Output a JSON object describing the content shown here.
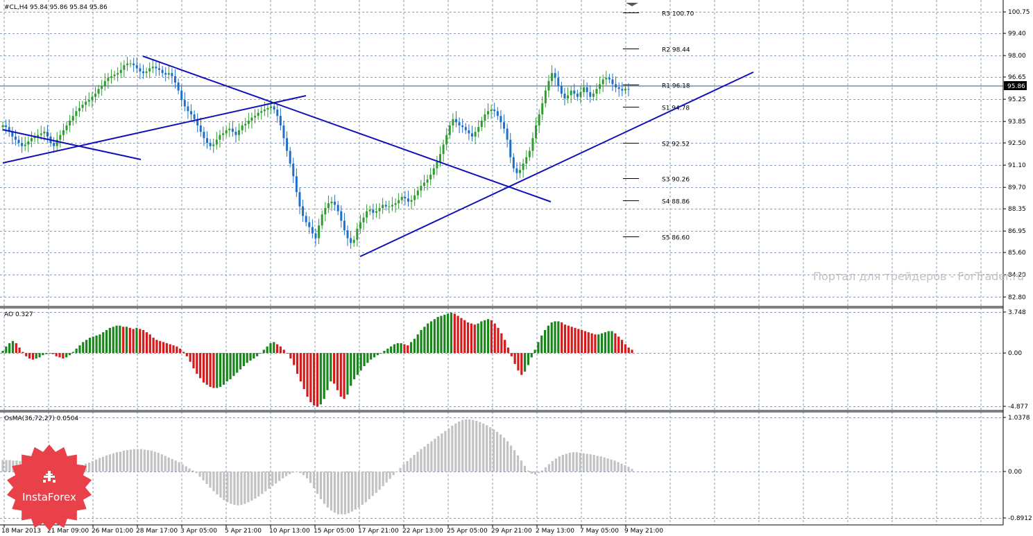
{
  "colors": {
    "background": "#ffffff",
    "grid": "#8c9bb0",
    "bull_candle": "#2e9c2e",
    "bear_candle": "#1f6fc8",
    "trendline": "#1010b8",
    "ao_up": "#18861a",
    "ao_down": "#d41a1a",
    "osma": "#c2c2c2",
    "bid_line": "#34527a",
    "logo": "#e8414a"
  },
  "main_window": {
    "title": "#CL,H4  95.84 95.86 95.84 95.86",
    "price_axis": [
      "100.75",
      "99.40",
      "98.00",
      "96.65",
      "95.25",
      "93.85",
      "92.50",
      "91.10",
      "89.70",
      "88.35",
      "86.95",
      "85.60",
      "84.20",
      "82.80"
    ],
    "current_price": "95.86",
    "pivots": [
      {
        "label": "R3 100.70",
        "value": 100.7
      },
      {
        "label": "R2 98.44",
        "value": 98.44
      },
      {
        "label": "R1 96.18",
        "value": 96.18
      },
      {
        "label": "S1 94.78",
        "value": 94.78
      },
      {
        "label": "S2 92.52",
        "value": 92.52
      },
      {
        "label": "S3 90.26",
        "value": 90.26
      },
      {
        "label": "S4 88.86",
        "value": 88.86
      },
      {
        "label": "S5 86.60",
        "value": 86.6
      }
    ]
  },
  "ao_window": {
    "title": "AO 0.327",
    "axis": [
      "3.748",
      "0.00",
      "-4.877"
    ]
  },
  "osma_window": {
    "title": "OsMA(36,72,27) 0.0504",
    "axis": [
      "1.0378",
      "0.00",
      "-0.8912"
    ]
  },
  "time_axis": [
    "18 Mar 2013",
    "21 Mar 09:00",
    "26 Mar 01:00",
    "28 Mar 17:00",
    "3 Apr 05:00",
    "5 Apr 21:00",
    "10 Apr 13:00",
    "15 Apr 05:00",
    "17 Apr 21:00",
    "22 Apr 13:00",
    "25 Apr 05:00",
    "29 Apr 21:00",
    "2 May 13:00",
    "7 May 05:00",
    "9 May 21:00"
  ],
  "watermark": "Портал для трейдеров - ForTrader.ru",
  "logo": {
    "text": "InstaForex",
    "icon": "instaforex-logo-icon"
  },
  "chart_data": [
    {
      "type": "candlestick",
      "name": "#CL,H4",
      "ylim": [
        82.2,
        101.5
      ],
      "closes": [
        93.6,
        93.5,
        93.2,
        92.9,
        92.7,
        92.5,
        92.3,
        92.4,
        92.6,
        92.8,
        92.9,
        93.0,
        93.1,
        93.2,
        92.9,
        92.5,
        92.3,
        92.7,
        93.0,
        93.3,
        93.6,
        93.9,
        94.2,
        94.5,
        94.7,
        94.9,
        95.1,
        95.2,
        95.4,
        95.6,
        95.9,
        96.1,
        96.4,
        96.6,
        96.7,
        96.8,
        96.9,
        97.1,
        97.4,
        97.5,
        97.5,
        97.4,
        97.2,
        97.0,
        96.9,
        97.0,
        97.2,
        97.3,
        97.2,
        97.1,
        96.9,
        96.8,
        96.9,
        96.7,
        96.3,
        95.8,
        95.2,
        94.8,
        94.5,
        94.3,
        94.0,
        93.6,
        93.2,
        92.8,
        92.5,
        92.3,
        92.4,
        92.7,
        93.0,
        93.1,
        93.3,
        93.4,
        93.2,
        93.0,
        93.3,
        93.6,
        93.7,
        93.9,
        94.1,
        94.2,
        94.4,
        94.5,
        94.6,
        94.7,
        94.8,
        94.6,
        94.2,
        93.6,
        92.8,
        92.0,
        91.2,
        90.4,
        89.4,
        88.5,
        87.9,
        87.5,
        87.2,
        86.8,
        86.5,
        87.3,
        88.0,
        88.4,
        88.7,
        88.8,
        88.6,
        88.2,
        87.6,
        87.0,
        86.5,
        86.2,
        86.4,
        87.1,
        87.5,
        87.8,
        88.2,
        88.3,
        88.1,
        88.2,
        88.4,
        88.6,
        88.5,
        88.5,
        88.6,
        88.7,
        88.9,
        89.1,
        89.0,
        88.8,
        88.9,
        89.2,
        89.5,
        89.8,
        90.0,
        90.2,
        90.5,
        90.9,
        91.3,
        91.8,
        92.4,
        93.0,
        93.6,
        94.0,
        93.8,
        93.6,
        93.5,
        93.3,
        93.1,
        92.9,
        93.2,
        93.5,
        93.9,
        94.3,
        94.5,
        94.6,
        94.5,
        94.2,
        93.8,
        93.4,
        92.7,
        91.6,
        90.9,
        90.6,
        90.8,
        91.2,
        91.6,
        92.0,
        92.8,
        93.6,
        94.3,
        95.0,
        95.8,
        96.4,
        96.9,
        96.6,
        96.1,
        95.6,
        95.3,
        95.5,
        95.8,
        95.6,
        95.4,
        95.7,
        96.0,
        95.7,
        95.4,
        95.6,
        95.9,
        96.2,
        96.5,
        96.6,
        96.5,
        96.2,
        96.0,
        95.9,
        95.8,
        95.9,
        95.86
      ]
    },
    {
      "type": "bar",
      "name": "AO",
      "ylim": [
        -4.877,
        3.748
      ],
      "values": [
        0.2,
        0.6,
        0.9,
        1.1,
        0.9,
        0.5,
        0.1,
        -0.3,
        -0.5,
        -0.6,
        -0.5,
        -0.4,
        -0.2,
        -0.1,
        0.0,
        -0.1,
        -0.3,
        -0.4,
        -0.5,
        -0.4,
        -0.2,
        0.1,
        0.4,
        0.7,
        1.0,
        1.2,
        1.4,
        1.5,
        1.6,
        1.7,
        1.9,
        2.1,
        2.3,
        2.4,
        2.5,
        2.5,
        2.4,
        2.4,
        2.3,
        2.2,
        2.3,
        2.2,
        2.1,
        1.9,
        1.7,
        1.4,
        1.2,
        1.1,
        1.0,
        0.9,
        0.8,
        0.7,
        0.6,
        0.4,
        0.1,
        -0.3,
        -0.8,
        -1.4,
        -1.9,
        -2.3,
        -2.7,
        -2.9,
        -3.1,
        -3.2,
        -3.2,
        -3.1,
        -2.9,
        -2.6,
        -2.4,
        -2.1,
        -1.8,
        -1.5,
        -1.2,
        -0.9,
        -0.7,
        -0.5,
        -0.3,
        0.0,
        0.3,
        0.6,
        0.9,
        1.0,
        0.8,
        0.6,
        0.3,
        0.0,
        -0.5,
        -1.1,
        -1.9,
        -2.6,
        -3.3,
        -4.0,
        -4.5,
        -4.8,
        -4.9,
        -4.7,
        -4.2,
        -3.4,
        -2.6,
        -2.8,
        -3.4,
        -4.0,
        -4.2,
        -3.8,
        -3.0,
        -2.4,
        -2.0,
        -1.6,
        -1.2,
        -0.9,
        -0.6,
        -0.4,
        -0.2,
        0.0,
        0.2,
        0.4,
        0.6,
        0.8,
        0.9,
        0.9,
        0.8,
        0.7,
        1.0,
        1.3,
        1.7,
        2.1,
        2.4,
        2.7,
        2.9,
        3.1,
        3.3,
        3.4,
        3.5,
        3.6,
        3.7,
        3.6,
        3.4,
        3.2,
        3.0,
        2.8,
        2.7,
        2.6,
        2.7,
        2.9,
        3.0,
        3.1,
        3.0,
        2.7,
        2.3,
        1.8,
        1.2,
        0.5,
        -0.3,
        -1.0,
        -1.6,
        -2.0,
        -1.7,
        -1.1,
        -0.4,
        0.3,
        1.0,
        1.6,
        2.1,
        2.5,
        2.8,
        2.9,
        2.9,
        2.8,
        2.6,
        2.5,
        2.4,
        2.3,
        2.2,
        2.1,
        2.0,
        1.9,
        1.8,
        1.7,
        1.7,
        1.8,
        1.9,
        2.0,
        2.0,
        1.8,
        1.5,
        1.2,
        0.8,
        0.5,
        0.3
      ]
    },
    {
      "type": "bar",
      "name": "OsMA(36,72,27)",
      "ylim": [
        -0.8912,
        1.0378
      ],
      "values": [
        0.22,
        0.22,
        0.22,
        0.21,
        0.21,
        0.2,
        0.2,
        0.19,
        0.19,
        0.18,
        0.17,
        0.16,
        0.15,
        0.14,
        0.13,
        0.12,
        0.11,
        0.1,
        0.1,
        0.09,
        0.09,
        0.1,
        0.11,
        0.13,
        0.15,
        0.17,
        0.2,
        0.23,
        0.26,
        0.28,
        0.31,
        0.33,
        0.35,
        0.37,
        0.38,
        0.4,
        0.41,
        0.42,
        0.43,
        0.43,
        0.43,
        0.42,
        0.41,
        0.4,
        0.38,
        0.36,
        0.33,
        0.3,
        0.27,
        0.24,
        0.21,
        0.18,
        0.14,
        0.1,
        0.06,
        0.02,
        -0.03,
        -0.1,
        -0.17,
        -0.24,
        -0.31,
        -0.38,
        -0.44,
        -0.5,
        -0.55,
        -0.59,
        -0.62,
        -0.64,
        -0.65,
        -0.64,
        -0.62,
        -0.59,
        -0.56,
        -0.52,
        -0.48,
        -0.43,
        -0.38,
        -0.33,
        -0.28,
        -0.23,
        -0.18,
        -0.13,
        -0.09,
        -0.05,
        -0.02,
        0.0,
        -0.03,
        -0.07,
        -0.13,
        -0.22,
        -0.32,
        -0.43,
        -0.53,
        -0.62,
        -0.69,
        -0.75,
        -0.79,
        -0.82,
        -0.82,
        -0.82,
        -0.8,
        -0.77,
        -0.73,
        -0.69,
        -0.64,
        -0.59,
        -0.53,
        -0.47,
        -0.41,
        -0.35,
        -0.28,
        -0.21,
        -0.14,
        -0.07,
        0.0,
        0.07,
        0.14,
        0.2,
        0.26,
        0.32,
        0.38,
        0.43,
        0.48,
        0.53,
        0.58,
        0.63,
        0.68,
        0.73,
        0.78,
        0.83,
        0.88,
        0.92,
        0.96,
        0.99,
        1.0,
        1.0,
        0.99,
        0.97,
        0.95,
        0.92,
        0.89,
        0.85,
        0.81,
        0.76,
        0.71,
        0.65,
        0.58,
        0.5,
        0.41,
        0.31,
        0.21,
        0.11,
        0.02,
        -0.04,
        -0.06,
        -0.03,
        0.02,
        0.08,
        0.14,
        0.2,
        0.25,
        0.29,
        0.32,
        0.34,
        0.36,
        0.37,
        0.37,
        0.36,
        0.35,
        0.34,
        0.33,
        0.32,
        0.3,
        0.29,
        0.27,
        0.25,
        0.23,
        0.21,
        0.18,
        0.15,
        0.12,
        0.09,
        0.05
      ]
    }
  ]
}
